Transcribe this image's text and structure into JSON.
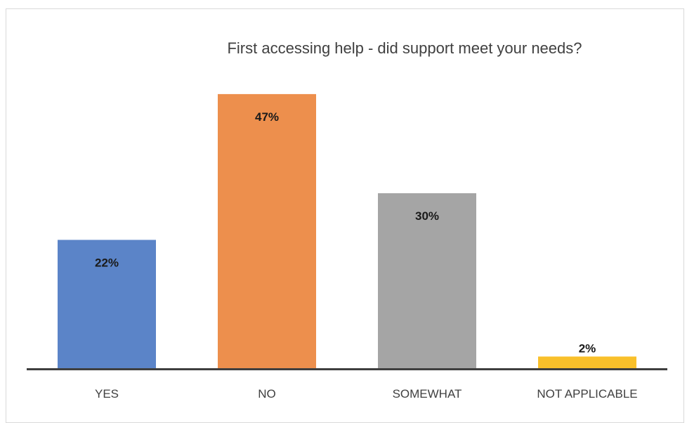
{
  "chart_data": {
    "type": "bar",
    "title": "First accessing help - did support meet your needs?",
    "categories": [
      "YES",
      "NO",
      "SOMEWHAT",
      "NOT APPLICABLE"
    ],
    "values": [
      22,
      47,
      30,
      2
    ],
    "value_labels": [
      "22%",
      "47%",
      "30%",
      "2%"
    ],
    "colors": [
      "#5b84c8",
      "#ed8f4d",
      "#a5a5a5",
      "#f9c02a"
    ],
    "xlabel": "",
    "ylabel": "",
    "ylim": [
      0,
      50
    ],
    "grid": false,
    "legend": "none"
  }
}
